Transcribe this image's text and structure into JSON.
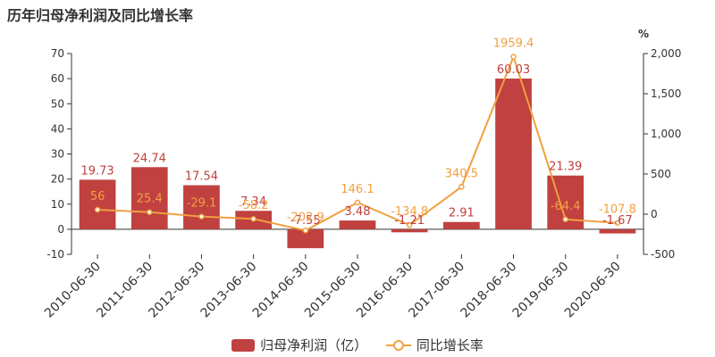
{
  "chart_data": {
    "type": "bar",
    "title": "历年归母净利润及同比增长率",
    "categories": [
      "2010-06-30",
      "2011-06-30",
      "2012-06-30",
      "2013-06-30",
      "2014-06-30",
      "2015-06-30",
      "2016-06-30",
      "2017-06-30",
      "2018-06-30",
      "2019-06-30",
      "2020-06-30"
    ],
    "series": [
      {
        "name": "归母净利润（亿）",
        "type": "bar",
        "axis": "left",
        "color": "#c0413f",
        "values": [
          19.73,
          24.74,
          17.54,
          7.34,
          -7.55,
          3.48,
          -1.21,
          2.91,
          60.03,
          21.39,
          -1.67
        ],
        "labels": [
          "19.73",
          "24.74",
          "17.54",
          "7.34",
          "-7.55",
          "3.48",
          "-1.21",
          "2.91",
          "60.03",
          "21.39",
          "-1.67"
        ]
      },
      {
        "name": "同比增长率",
        "type": "line",
        "axis": "right",
        "color": "#f0a040",
        "values": [
          56,
          25.4,
          -29.1,
          -58.2,
          -202.9,
          146.1,
          -134.8,
          340.5,
          1959.4,
          -64.4,
          -107.8
        ],
        "labels": [
          "56",
          "25.4",
          "-29.1",
          "-58.2",
          "-202.9",
          "146.1",
          "-134.8",
          "340.5",
          "1959.4",
          "-64.4",
          "-107.8"
        ]
      }
    ],
    "y_left": {
      "min": -10,
      "max": 70,
      "ticks": [
        -10,
        0,
        10,
        20,
        30,
        40,
        50,
        60,
        70
      ]
    },
    "y_right": {
      "min": -500,
      "max": 2000,
      "unit": "%",
      "ticks": [
        -500,
        0,
        500,
        1000,
        1500,
        2000
      ],
      "tick_labels": [
        "-500",
        "0",
        "500",
        "1,000",
        "1,500",
        "2,000"
      ]
    },
    "legend": {
      "position": "bottom",
      "items": [
        "归母净利润（亿）",
        "同比增长率"
      ]
    },
    "grid": false
  }
}
